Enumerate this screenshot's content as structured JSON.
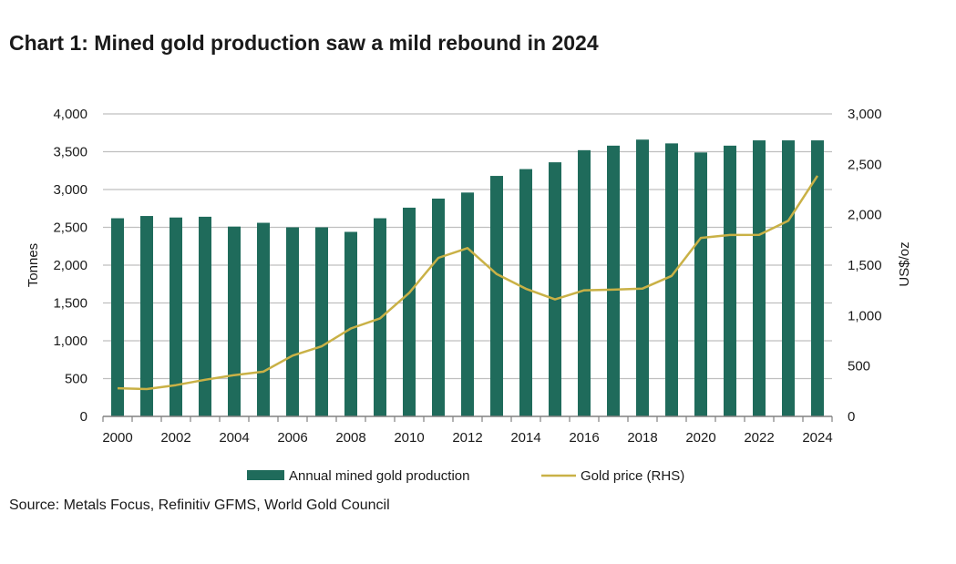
{
  "title": "Chart 1: Mined gold production saw a mild rebound in 2024",
  "source": "Source: Metals Focus, Refinitiv GFMS, World Gold Council",
  "chart_data": {
    "type": "bar+line",
    "title": "Chart 1: Mined gold production saw a mild rebound in 2024",
    "ylabel": "Tonnes",
    "y2label": "US$/oz",
    "ylim": [
      0,
      4000
    ],
    "y2lim": [
      0,
      3000
    ],
    "yticks": [
      "0",
      "500",
      "1,000",
      "1,500",
      "2,000",
      "2,500",
      "3,000",
      "3,500",
      "4,000"
    ],
    "y2ticks": [
      "0",
      "500",
      "1,000",
      "1,500",
      "2,000",
      "2,500",
      "3,000"
    ],
    "xticks": [
      "2000",
      "2002",
      "2004",
      "2006",
      "2008",
      "2010",
      "2012",
      "2014",
      "2016",
      "2018",
      "2020",
      "2022",
      "2024"
    ],
    "grid": true,
    "legend_position": "bottom",
    "colors": {
      "bars": "#1f6b5b",
      "line": "#c9b146",
      "grid": "#bfbfbf",
      "axis": "#808080"
    },
    "categories": [
      2000,
      2001,
      2002,
      2003,
      2004,
      2005,
      2006,
      2007,
      2008,
      2009,
      2010,
      2011,
      2012,
      2013,
      2014,
      2015,
      2016,
      2017,
      2018,
      2019,
      2020,
      2021,
      2022,
      2023,
      2024
    ],
    "series": [
      {
        "name": "Annual mined gold production",
        "type": "bar",
        "axis": "left",
        "values": [
          2620,
          2650,
          2630,
          2640,
          2510,
          2560,
          2500,
          2500,
          2440,
          2620,
          2760,
          2880,
          2960,
          3180,
          3270,
          3360,
          3520,
          3580,
          3660,
          3610,
          3490,
          3580,
          3650,
          3650,
          3650
        ]
      },
      {
        "name": "Gold price (RHS)",
        "type": "line",
        "axis": "right",
        "values": [
          279,
          271,
          310,
          363,
          409,
          444,
          603,
          695,
          872,
          972,
          1225,
          1572,
          1669,
          1411,
          1266,
          1160,
          1251,
          1257,
          1268,
          1393,
          1770,
          1799,
          1800,
          1941,
          2386
        ]
      }
    ]
  }
}
